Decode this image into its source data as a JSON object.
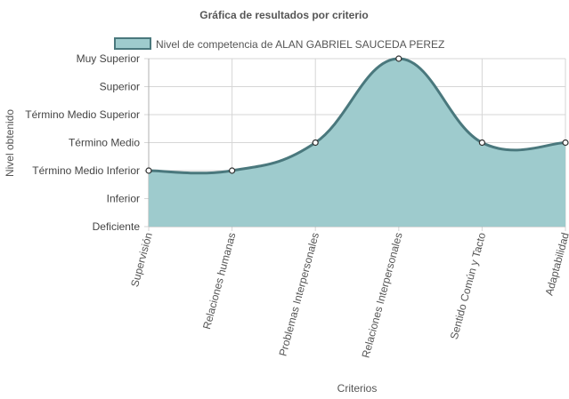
{
  "chart_data": {
    "type": "area",
    "title": "Gráfica de resultados por criterio",
    "xlabel": "Criterios",
    "ylabel": "Nivel obtenido",
    "categories": [
      "Supervisión",
      "Relaciones humanas",
      "Problemas Interpersonales",
      "Relaciones Interpersonales",
      "Sentido Común y Tacto",
      "Adaptabilidad"
    ],
    "y_levels": [
      "Deficiente",
      "Inferior",
      "Término Medio Inferior",
      "Término Medio",
      "Término Medio Superior",
      "Superior",
      "Muy Superior"
    ],
    "series": [
      {
        "name": "Nivel de competencia de ALAN GABRIEL SAUCEDA PEREZ",
        "values": [
          2,
          2,
          3,
          6,
          3,
          3
        ],
        "value_labels": [
          "Término Medio Inferior",
          "Término Medio Inferior",
          "Término Medio",
          "Muy Superior",
          "Término Medio",
          "Término Medio"
        ]
      }
    ],
    "ylim": [
      0,
      6
    ],
    "grid": true,
    "legend_position": "top",
    "fill_color": "#9ecbcd",
    "line_color": "#4a787d",
    "point_fill": "#ffffff",
    "point_stroke": "#2f2f2f"
  }
}
